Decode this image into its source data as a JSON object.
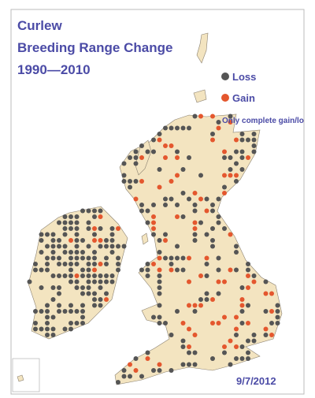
{
  "title_lines": [
    "Curlew",
    "Breeding Range Change",
    "1990—2010"
  ],
  "legend": [
    {
      "name": "Loss",
      "color": "#555555"
    },
    {
      "name": "Gain",
      "color": "#e4572e"
    }
  ],
  "note": "Only complete gain/los",
  "date": "9/7/2012"
}
